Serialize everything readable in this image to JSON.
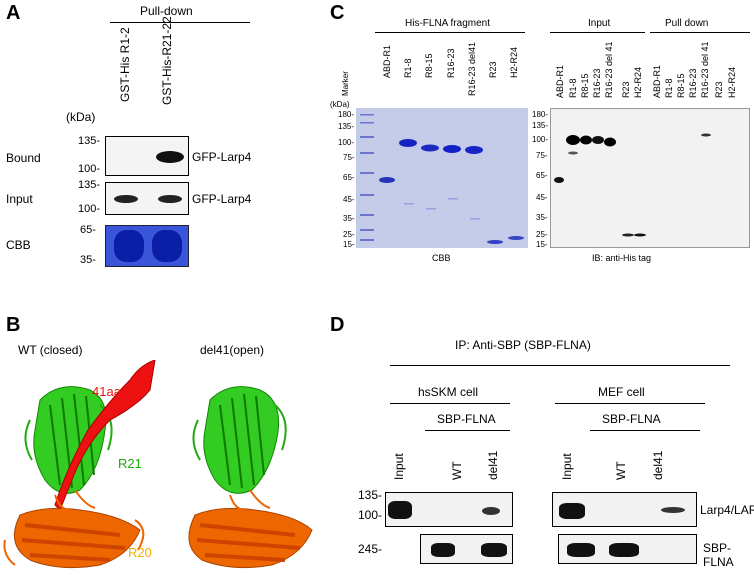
{
  "panel_a": {
    "letter": "A",
    "pulldown": "Pull-down",
    "lanes": [
      "GST-His R1-2",
      "GST-His-R21-22"
    ],
    "kda_unit": "(kDa)",
    "bound_label": "Bound",
    "input_label": "Input",
    "cbb_label": "CBB",
    "bound_markers": [
      "135-",
      "100-"
    ],
    "input_markers": [
      "135-",
      "100-"
    ],
    "cbb_markers": [
      "65-",
      "35-"
    ],
    "bound_target": "GFP-Larp4",
    "input_target": "GFP-Larp4"
  },
  "panel_b": {
    "letter": "B",
    "wt_label": "WT (closed)",
    "del_label": "del41(open)",
    "aa_label": "41aa",
    "r21_label": "R21",
    "r20_label": "R20",
    "colors": {
      "loop": "#ee1111",
      "r21": "#22cc11",
      "r20": "#ee6600",
      "r20_dark": "#cc4400"
    }
  },
  "panel_c": {
    "letter": "C",
    "his_header": "His-FLNA fragment",
    "input_header": "Input",
    "pulldown_header": "Pull down",
    "marker_lane": "Marker",
    "kda_unit": "(kDa)",
    "cbb_lanes": [
      "ABD-R1",
      "R1-8",
      "R8-15",
      "R16-23",
      "R16-23 del41",
      "R23",
      "H2-R24"
    ],
    "ib_lanes": [
      "ABD-R1",
      "R1-8",
      "R8-15",
      "R16-23",
      "R16-23 del 41",
      "R23",
      "H2-R24",
      "ABD-R1",
      "R1-8",
      "R8-15",
      "R16-23",
      "R16-23 del 41",
      "R23",
      "H2-R24"
    ],
    "cbb_markers": [
      "180-",
      "135-",
      "100-",
      "75-",
      "65-",
      "45-",
      "35-",
      "25-",
      "15-"
    ],
    "ib_markers": [
      "180-",
      "135-",
      "100-",
      "75-",
      "65-",
      "45-",
      "35-",
      "25-",
      "15-"
    ],
    "cbb_caption": "CBB",
    "ib_caption": "IB: anti-His tag"
  },
  "panel_d": {
    "letter": "D",
    "ip_title": "IP: Anti-SBP (SBP-FLNA)",
    "hsskm": "hsSKM cell",
    "mef": "MEF cell",
    "sbp_flna_header": "SBP-FLNA",
    "lanes": [
      "Input",
      "WT",
      "del41"
    ],
    "markers": [
      "135-",
      "100-",
      "245-"
    ],
    "larp4_label": "Larp4/LARP4",
    "sbp_label": "SBP-FLNA"
  }
}
